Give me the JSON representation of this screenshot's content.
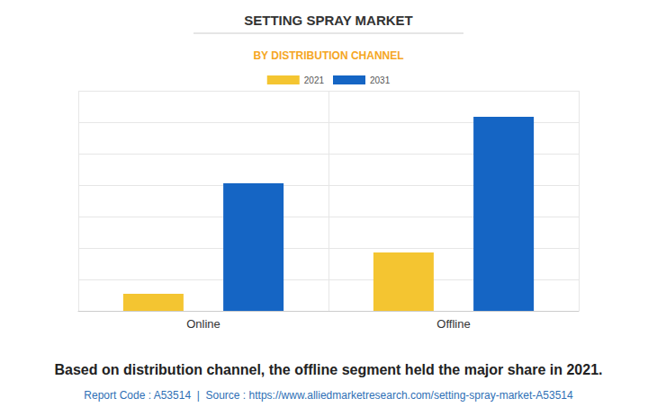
{
  "chart_data": {
    "type": "bar",
    "title": "SETTING SPRAY MARKET",
    "subtitle": "BY DISTRIBUTION CHANNEL",
    "annotations": [
      "Based on distribution channel, the offline segment held the major share in 2021.",
      "Report Code : A53514  |  Source : https://www.alliedmarketresearch.com/setting-spray-market-A53514"
    ],
    "categories": [
      "Online",
      "Offline"
    ],
    "series": [
      {
        "name": "2021",
        "color": "#f4c531",
        "values": [
          0.54,
          1.86
        ]
      },
      {
        "name": "2031",
        "color": "#1565c4",
        "values": [
          4.06,
          6.17
        ]
      }
    ],
    "ylim": [
      0,
      7
    ],
    "yticks": [
      0,
      1,
      2,
      3,
      4,
      5,
      6,
      7
    ],
    "grid": true,
    "legend": "top",
    "tick_labels": "x",
    "data_labels": false
  }
}
